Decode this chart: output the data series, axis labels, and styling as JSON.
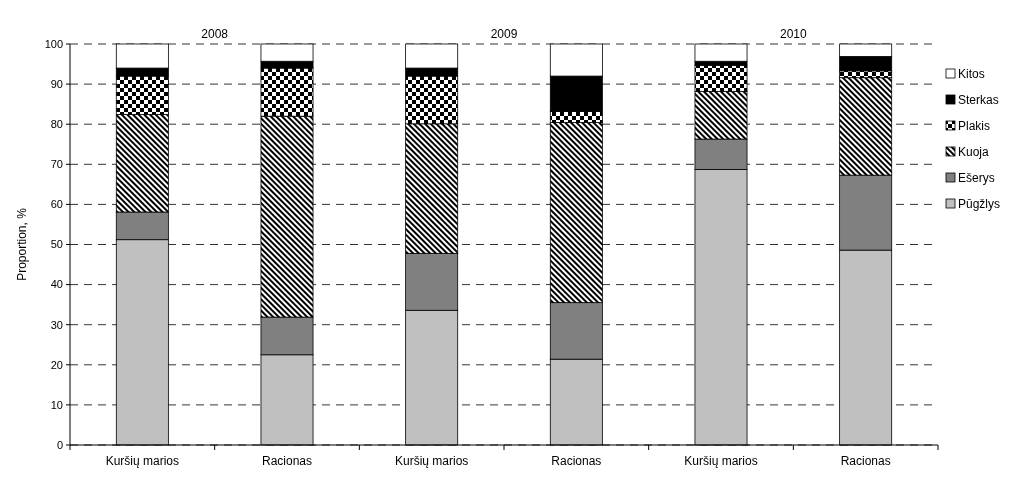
{
  "chart_data": {
    "type": "bar",
    "stacked": true,
    "ylabel": "Proportion, %",
    "categories": [
      "Kuršių marios",
      "Racionas",
      "Kuršių marios",
      "Racionas",
      "Kuršių marios",
      "Racionas"
    ],
    "annotations": [
      "2008",
      "2009",
      "2010"
    ],
    "series": [
      {
        "name": "Pūgžlys",
        "color": "#c0c0c0",
        "values": [
          51.2,
          22.5,
          33.6,
          21.4,
          68.7,
          48.6
        ]
      },
      {
        "name": "Ešerys",
        "color": "#808080",
        "values": [
          6.9,
          9.4,
          14.2,
          14.1,
          7.6,
          18.7
        ]
      },
      {
        "name": "Kuoja",
        "color": "#000000",
        "values": [
          24.3,
          50.1,
          32.3,
          44.9,
          11.9,
          24.3
        ]
      },
      {
        "name": "Plakis",
        "color": "#000000",
        "values": [
          9.6,
          12.0,
          11.9,
          2.8,
          6.5,
          1.7
        ]
      },
      {
        "name": "Sterkas",
        "color": "#000000",
        "values": [
          2.0,
          1.7,
          2.0,
          8.8,
          1.0,
          3.6
        ]
      },
      {
        "name": "Kitos",
        "color": "#ffffff",
        "values": [
          6.0,
          4.3,
          6.0,
          8.0,
          4.3,
          3.1
        ]
      }
    ],
    "ylim": [
      0,
      100
    ],
    "yticks": [
      0,
      10,
      20,
      30,
      40,
      50,
      60,
      70,
      80,
      90,
      100
    ],
    "grid": "y",
    "legend": "right"
  }
}
